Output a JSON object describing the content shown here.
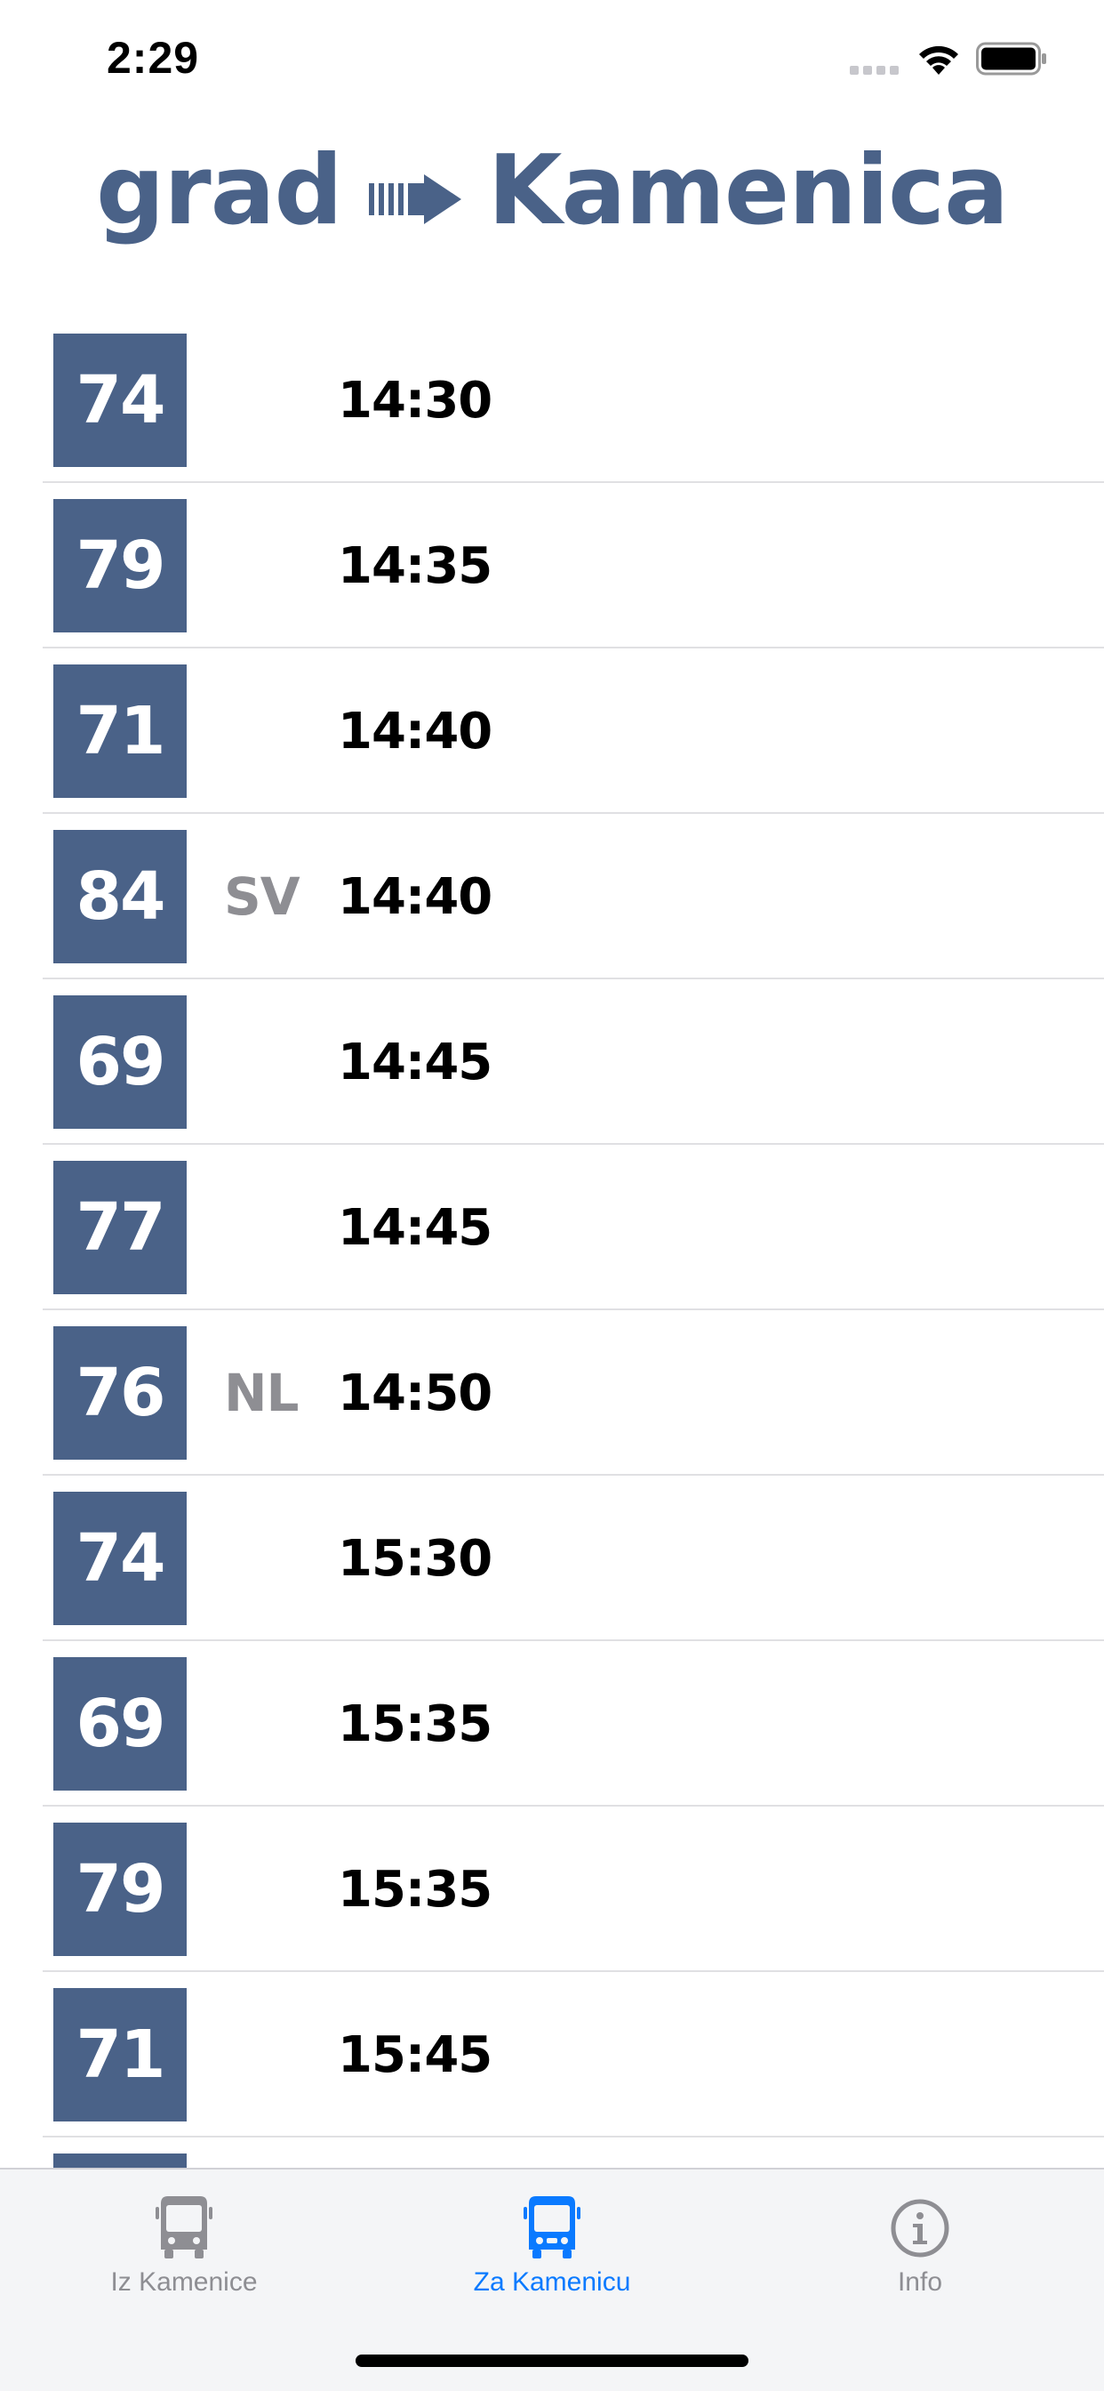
{
  "status_bar": {
    "time": "2:29"
  },
  "header": {
    "from": "grad",
    "to": "Kamenica",
    "arrow_icon": "right-arrow-icon",
    "color": "#4a6288"
  },
  "departures": [
    {
      "line": "74",
      "note": "",
      "time": "14:30"
    },
    {
      "line": "79",
      "note": "",
      "time": "14:35"
    },
    {
      "line": "71",
      "note": "",
      "time": "14:40"
    },
    {
      "line": "84",
      "note": "SV",
      "time": "14:40"
    },
    {
      "line": "69",
      "note": "",
      "time": "14:45"
    },
    {
      "line": "77",
      "note": "",
      "time": "14:45"
    },
    {
      "line": "76",
      "note": "NL",
      "time": "14:50"
    },
    {
      "line": "74",
      "note": "",
      "time": "15:30"
    },
    {
      "line": "69",
      "note": "",
      "time": "15:35"
    },
    {
      "line": "79",
      "note": "",
      "time": "15:35"
    },
    {
      "line": "71",
      "note": "",
      "time": "15:45"
    }
  ],
  "tab_bar": {
    "tabs": [
      {
        "label": "Iz Kamenice",
        "icon": "bus-icon",
        "active": false
      },
      {
        "label": "Za Kamenicu",
        "icon": "bus-icon",
        "active": true
      },
      {
        "label": "Info",
        "icon": "info-icon",
        "active": false
      }
    ],
    "active_color": "#0a7aff",
    "inactive_color": "#8e8e93"
  }
}
